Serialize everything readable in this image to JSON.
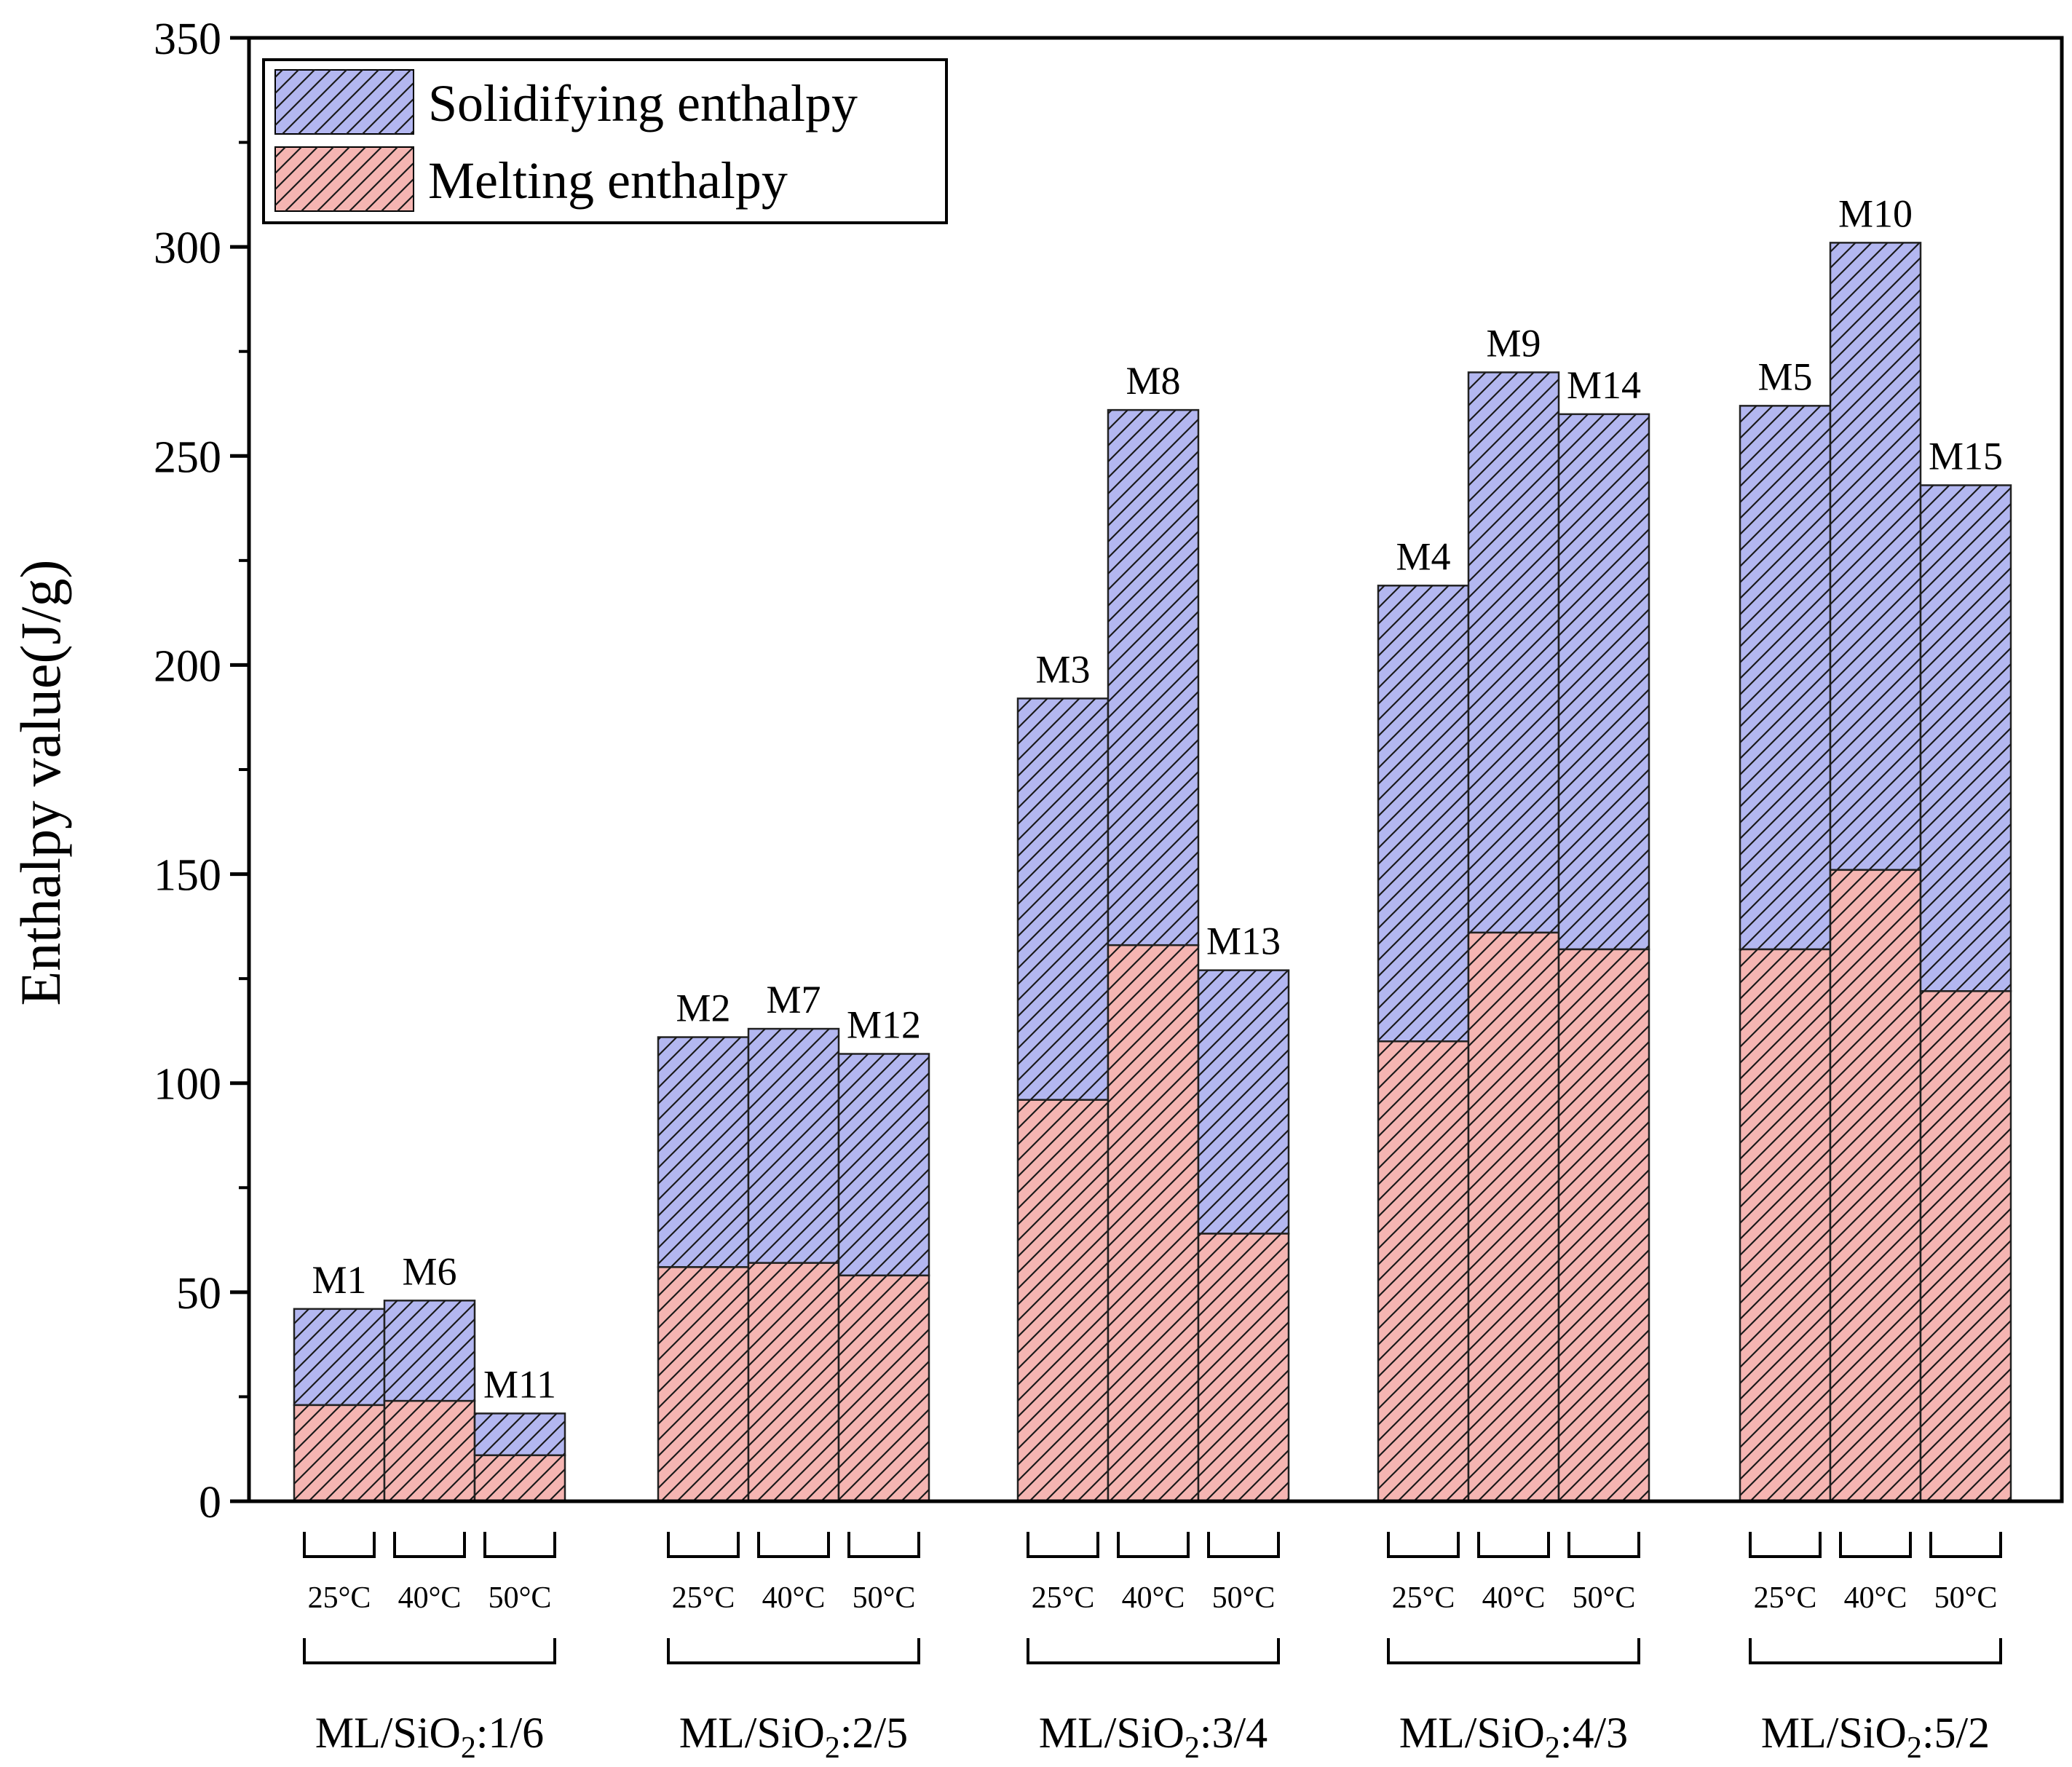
{
  "chart_data": {
    "type": "bar",
    "stacked": true,
    "ylabel": "Enthalpy value(J/g)",
    "ylim": [
      0,
      350
    ],
    "yticks": [
      0,
      50,
      100,
      150,
      200,
      250,
      300,
      350
    ],
    "legend": {
      "placement": "top-left",
      "entries": [
        "Solidifying enthalpy",
        "Melting enthalpy"
      ]
    },
    "series_names": [
      "Melting enthalpy",
      "Solidifying enthalpy"
    ],
    "colors": {
      "melting": "#f5b5b2",
      "solidifying": "#b3b7f0",
      "hatch": "#1a1a1a"
    },
    "temperatures": [
      "25°C",
      "40°C",
      "50°C"
    ],
    "groups": [
      {
        "prefix": "ML/SiO",
        "sub": "2",
        "suffix": ":1/6",
        "bars": [
          {
            "label": "M1",
            "melting": 23,
            "total": 46
          },
          {
            "label": "M6",
            "melting": 24,
            "total": 48
          },
          {
            "label": "M11",
            "melting": 11,
            "total": 21
          }
        ]
      },
      {
        "prefix": "ML/SiO",
        "sub": "2",
        "suffix": ":2/5",
        "bars": [
          {
            "label": "M2",
            "melting": 56,
            "total": 111
          },
          {
            "label": "M7",
            "melting": 57,
            "total": 113
          },
          {
            "label": "M12",
            "melting": 54,
            "total": 107
          }
        ]
      },
      {
        "prefix": "ML/SiO",
        "sub": "2",
        "suffix": ":3/4",
        "bars": [
          {
            "label": "M3",
            "melting": 96,
            "total": 192
          },
          {
            "label": "M8",
            "melting": 133,
            "total": 261
          },
          {
            "label": "M13",
            "melting": 64,
            "total": 127
          }
        ]
      },
      {
        "prefix": "ML/SiO",
        "sub": "2",
        "suffix": ":4/3",
        "bars": [
          {
            "label": "M4",
            "melting": 110,
            "total": 219
          },
          {
            "label": "M9",
            "melting": 136,
            "total": 270
          },
          {
            "label": "M14",
            "melting": 132,
            "total": 260
          }
        ]
      },
      {
        "prefix": "ML/SiO",
        "sub": "2",
        "suffix": ":5/2",
        "bars": [
          {
            "label": "M5",
            "melting": 132,
            "total": 262
          },
          {
            "label": "M10",
            "melting": 151,
            "total": 301
          },
          {
            "label": "M15",
            "melting": 122,
            "total": 243
          }
        ]
      }
    ]
  }
}
